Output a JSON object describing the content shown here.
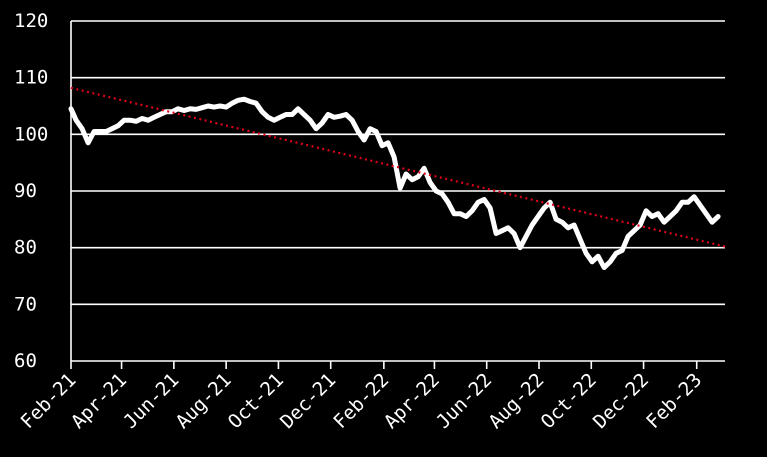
{
  "colors": {
    "background": "#000000",
    "foreground": "#ffffff",
    "trend": "#e0001b"
  },
  "chart_data": {
    "type": "line",
    "title": "",
    "xlabel": "",
    "ylabel": "",
    "grid": "horizontal",
    "x_range": [
      "2021-02-01",
      "2023-03-06"
    ],
    "ylim": [
      60,
      120
    ],
    "y_ticks": [
      60,
      70,
      80,
      90,
      100,
      110,
      120
    ],
    "x_ticks": [
      {
        "date": "2021-02-01",
        "label": "Feb-21"
      },
      {
        "date": "2021-04-01",
        "label": "Apr-21"
      },
      {
        "date": "2021-06-01",
        "label": "Jun-21"
      },
      {
        "date": "2021-08-01",
        "label": "Aug-21"
      },
      {
        "date": "2021-10-01",
        "label": "Oct-21"
      },
      {
        "date": "2021-12-01",
        "label": "Dec-21"
      },
      {
        "date": "2022-02-01",
        "label": "Feb-22"
      },
      {
        "date": "2022-04-01",
        "label": "Apr-22"
      },
      {
        "date": "2022-06-01",
        "label": "Jun-22"
      },
      {
        "date": "2022-08-01",
        "label": "Aug-22"
      },
      {
        "date": "2022-10-01",
        "label": "Oct-22"
      },
      {
        "date": "2022-12-01",
        "label": "Dec-22"
      },
      {
        "date": "2023-02-01",
        "label": "Feb-23"
      }
    ],
    "series": [
      {
        "style": "solid",
        "color": "#ffffff",
        "points": [
          [
            "2021-02-01",
            104.5
          ],
          [
            "2021-02-07",
            102.5
          ],
          [
            "2021-02-14",
            101
          ],
          [
            "2021-02-21",
            98.5
          ],
          [
            "2021-02-28",
            100.5
          ],
          [
            "2021-03-07",
            100.5
          ],
          [
            "2021-03-14",
            100.5
          ],
          [
            "2021-03-21",
            101
          ],
          [
            "2021-03-28",
            101.5
          ],
          [
            "2021-04-04",
            102.5
          ],
          [
            "2021-04-11",
            102.5
          ],
          [
            "2021-04-18",
            102.3
          ],
          [
            "2021-04-25",
            102.8
          ],
          [
            "2021-05-02",
            102.5
          ],
          [
            "2021-05-09",
            103
          ],
          [
            "2021-05-16",
            103.5
          ],
          [
            "2021-05-23",
            104
          ],
          [
            "2021-05-30",
            104
          ],
          [
            "2021-06-06",
            104.5
          ],
          [
            "2021-06-13",
            104.2
          ],
          [
            "2021-06-20",
            104.5
          ],
          [
            "2021-06-27",
            104.4
          ],
          [
            "2021-07-04",
            104.7
          ],
          [
            "2021-07-11",
            105
          ],
          [
            "2021-07-18",
            104.8
          ],
          [
            "2021-07-25",
            105
          ],
          [
            "2021-08-01",
            104.8
          ],
          [
            "2021-08-08",
            105.5
          ],
          [
            "2021-08-15",
            106
          ],
          [
            "2021-08-22",
            106.2
          ],
          [
            "2021-08-29",
            105.8
          ],
          [
            "2021-09-05",
            105.5
          ],
          [
            "2021-09-12",
            104
          ],
          [
            "2021-09-19",
            103
          ],
          [
            "2021-09-26",
            102.5
          ],
          [
            "2021-10-03",
            103
          ],
          [
            "2021-10-10",
            103.5
          ],
          [
            "2021-10-17",
            103.5
          ],
          [
            "2021-10-24",
            104.5
          ],
          [
            "2021-10-31",
            103.5
          ],
          [
            "2021-11-07",
            102.5
          ],
          [
            "2021-11-14",
            101
          ],
          [
            "2021-11-21",
            102
          ],
          [
            "2021-11-28",
            103.5
          ],
          [
            "2021-12-05",
            103
          ],
          [
            "2021-12-12",
            103.2
          ],
          [
            "2021-12-19",
            103.5
          ],
          [
            "2021-12-26",
            102.5
          ],
          [
            "2022-01-02",
            100.5
          ],
          [
            "2022-01-09",
            99
          ],
          [
            "2022-01-16",
            101
          ],
          [
            "2022-01-23",
            100.5
          ],
          [
            "2022-01-30",
            98
          ],
          [
            "2022-02-06",
            98.5
          ],
          [
            "2022-02-13",
            96
          ],
          [
            "2022-02-20",
            90.5
          ],
          [
            "2022-02-27",
            93
          ],
          [
            "2022-03-06",
            92
          ],
          [
            "2022-03-13",
            92.5
          ],
          [
            "2022-03-20",
            94
          ],
          [
            "2022-03-27",
            91.5
          ],
          [
            "2022-04-03",
            90
          ],
          [
            "2022-04-10",
            89.5
          ],
          [
            "2022-04-17",
            88
          ],
          [
            "2022-04-24",
            86
          ],
          [
            "2022-05-01",
            86
          ],
          [
            "2022-05-08",
            85.5
          ],
          [
            "2022-05-15",
            86.5
          ],
          [
            "2022-05-22",
            88
          ],
          [
            "2022-05-29",
            88.5
          ],
          [
            "2022-06-05",
            87
          ],
          [
            "2022-06-12",
            82.5
          ],
          [
            "2022-06-19",
            83
          ],
          [
            "2022-06-26",
            83.5
          ],
          [
            "2022-07-03",
            82.5
          ],
          [
            "2022-07-10",
            80
          ],
          [
            "2022-07-17",
            82
          ],
          [
            "2022-07-24",
            84
          ],
          [
            "2022-07-31",
            85.5
          ],
          [
            "2022-08-07",
            87
          ],
          [
            "2022-08-14",
            88
          ],
          [
            "2022-08-21",
            85
          ],
          [
            "2022-08-28",
            84.5
          ],
          [
            "2022-09-04",
            83.5
          ],
          [
            "2022-09-11",
            84
          ],
          [
            "2022-09-18",
            81.5
          ],
          [
            "2022-09-25",
            79
          ],
          [
            "2022-10-02",
            77.5
          ],
          [
            "2022-10-09",
            78.5
          ],
          [
            "2022-10-16",
            76.5
          ],
          [
            "2022-10-23",
            77.5
          ],
          [
            "2022-10-30",
            79
          ],
          [
            "2022-11-06",
            79.5
          ],
          [
            "2022-11-13",
            82
          ],
          [
            "2022-11-20",
            83
          ],
          [
            "2022-11-27",
            84
          ],
          [
            "2022-12-04",
            86.5
          ],
          [
            "2022-12-11",
            85.5
          ],
          [
            "2022-12-18",
            86
          ],
          [
            "2022-12-25",
            84.5
          ],
          [
            "2023-01-01",
            85.5
          ],
          [
            "2023-01-08",
            86.5
          ],
          [
            "2023-01-15",
            88
          ],
          [
            "2023-01-22",
            88
          ],
          [
            "2023-01-29",
            89
          ],
          [
            "2023-02-05",
            87.5
          ],
          [
            "2023-02-12",
            86
          ],
          [
            "2023-02-19",
            84.5
          ],
          [
            "2023-02-26",
            85.5
          ]
        ]
      },
      {
        "style": "dotted",
        "color": "#e0001b",
        "points": [
          [
            "2021-02-01",
            108.2
          ],
          [
            "2023-03-06",
            80.2
          ]
        ]
      }
    ]
  }
}
